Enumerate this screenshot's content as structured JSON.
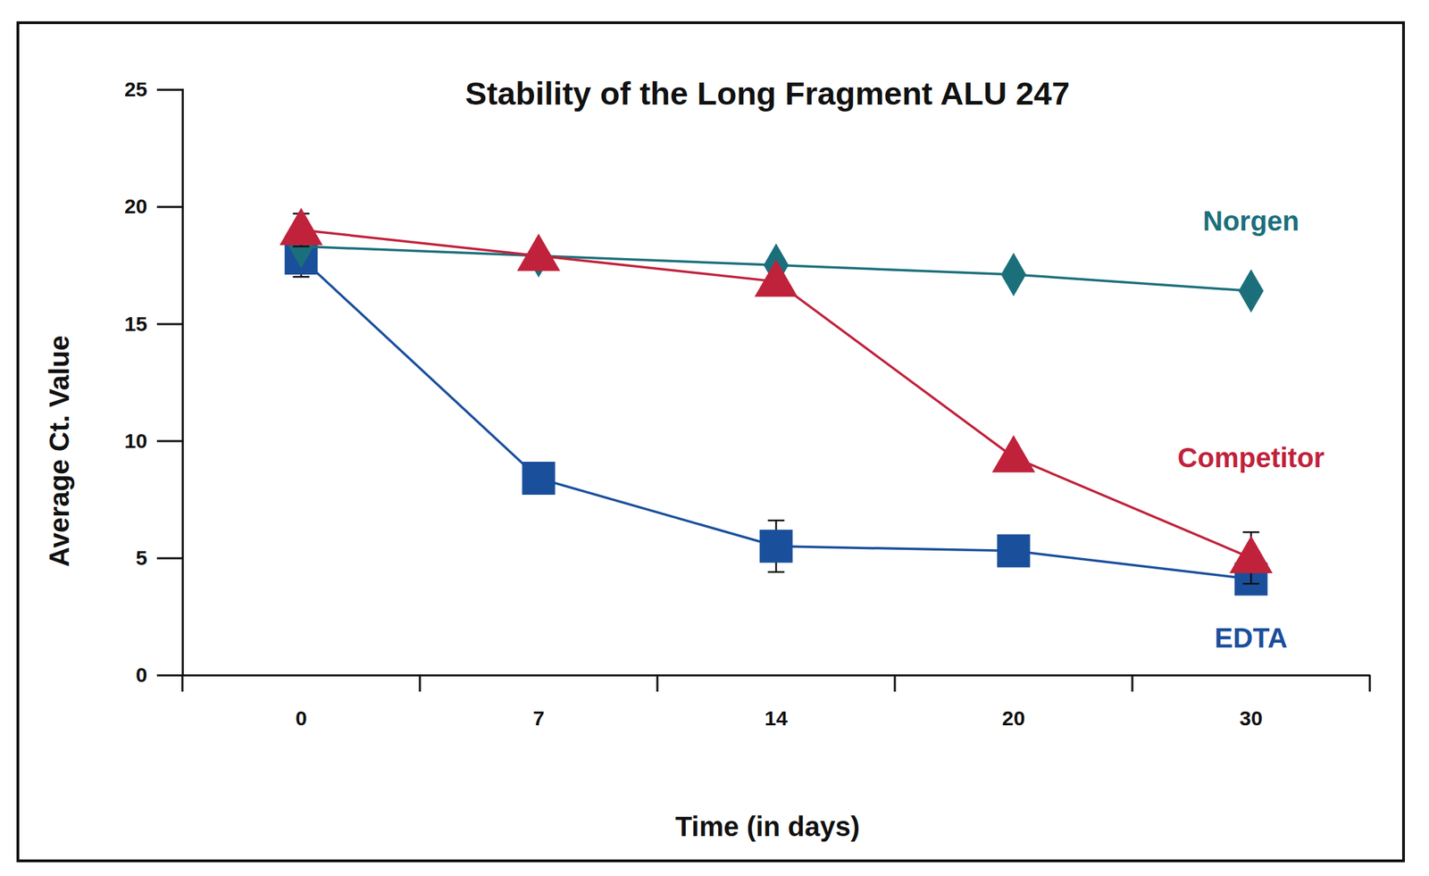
{
  "chart_data": {
    "type": "line",
    "title": "Stability of the Long Fragment ALU 247",
    "x_label": "Time (in days)",
    "y_label": "Average Ct. Value",
    "categories": [
      "0",
      "7",
      "14",
      "20",
      "30"
    ],
    "ylim": [
      0,
      25
    ],
    "yticks": [
      0,
      5,
      10,
      15,
      20,
      25
    ],
    "grid": false,
    "series": [
      {
        "name": "Norgen",
        "color": "#1b6f7b",
        "marker": "diamond",
        "values": [
          18.3,
          17.9,
          17.5,
          17.1,
          16.4
        ]
      },
      {
        "name": "Competitor",
        "color": "#c0223b",
        "marker": "triangle",
        "values": [
          19.0,
          17.9,
          16.8,
          9.3,
          5.0
        ],
        "errors": [
          0.7,
          null,
          null,
          null,
          1.1
        ]
      },
      {
        "name": "EDTA",
        "color": "#1a4f9c",
        "marker": "square",
        "values": [
          17.8,
          8.4,
          5.5,
          5.3,
          4.1
        ],
        "errors": [
          0.8,
          null,
          1.1,
          null,
          null
        ]
      }
    ]
  }
}
